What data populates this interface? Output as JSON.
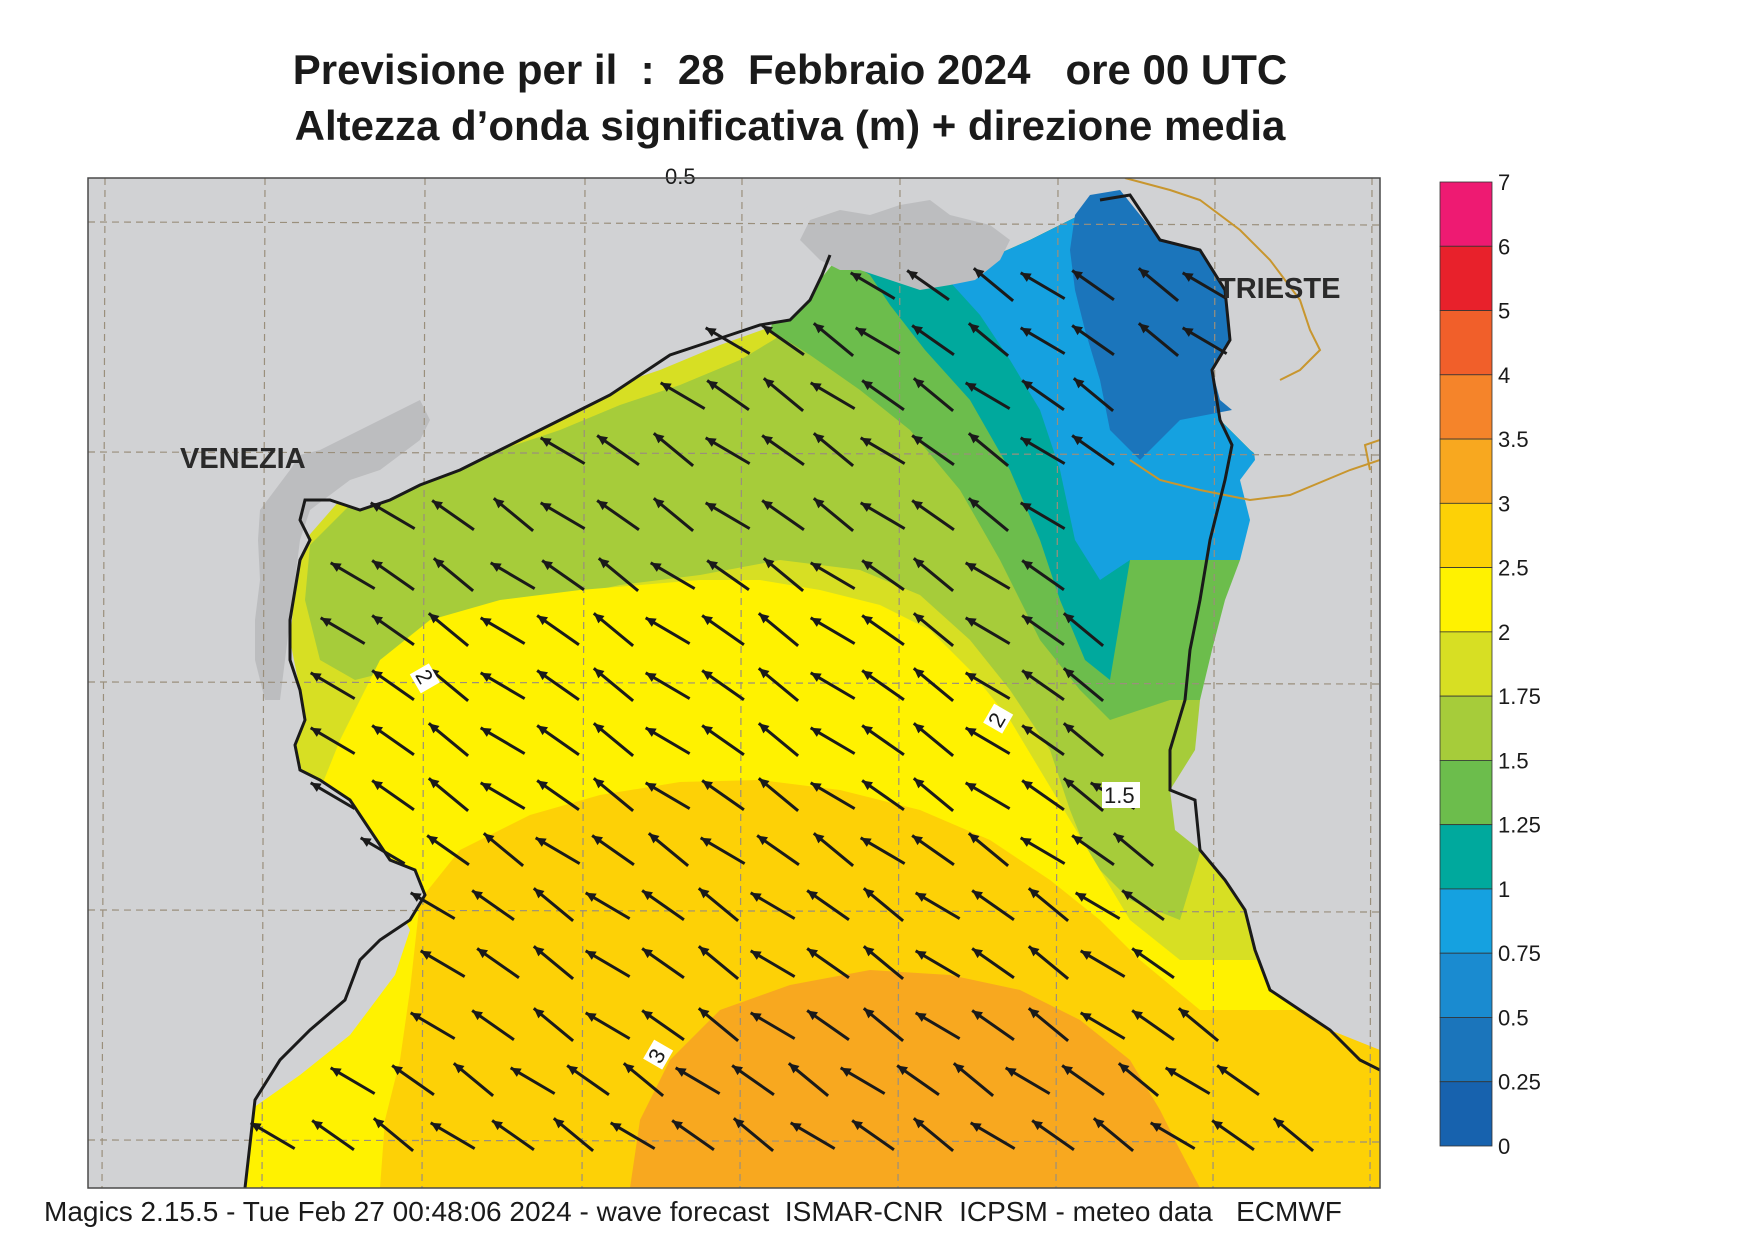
{
  "title": {
    "line1": "Previsione per il  :  28  Febbraio 2024   ore 00 UTC",
    "line2": "Altezza d’onda significativa (m) + direzione media"
  },
  "map": {
    "cities": [
      {
        "name": "VENEZIA"
      },
      {
        "name": "TRIESTE"
      }
    ],
    "contour_labels": [
      "0.5",
      "2",
      "2",
      "1.5",
      "3"
    ],
    "arrow_direction": "north-west",
    "colors": {
      "land": "#d1d2d4",
      "coast": "#1a1a1a",
      "border": "#c8962e",
      "grid": "#9a8f7c"
    }
  },
  "legend": {
    "title": "",
    "levels": [
      {
        "label": "7",
        "color": null
      },
      {
        "label": "6",
        "color": "#ee1a72"
      },
      {
        "label": "5",
        "color": "#e8212b"
      },
      {
        "label": "4",
        "color": "#f15f2a"
      },
      {
        "label": "3.5",
        "color": "#f5842a"
      },
      {
        "label": "3",
        "color": "#f8a81f"
      },
      {
        "label": "2.5",
        "color": "#fdd106"
      },
      {
        "label": "2",
        "color": "#fff200"
      },
      {
        "label": "1.75",
        "color": "#d7df23"
      },
      {
        "label": "1.5",
        "color": "#a6cc3a"
      },
      {
        "label": "1.25",
        "color": "#6cbd4c"
      },
      {
        "label": "1",
        "color": "#00a99d"
      },
      {
        "label": "0.75",
        "color": "#15a1e0"
      },
      {
        "label": "0.5",
        "color": "#1a8bd0"
      },
      {
        "label": "0.25",
        "color": "#1b75bb"
      },
      {
        "label": "0",
        "color": "#1762ae"
      }
    ]
  },
  "footer": {
    "text": "Magics 2.15.5 - Tue Feb 27 00:48:06 2024 - wave forecast  ISMAR-CNR  ICPSM - meteo data   ECMWF"
  }
}
